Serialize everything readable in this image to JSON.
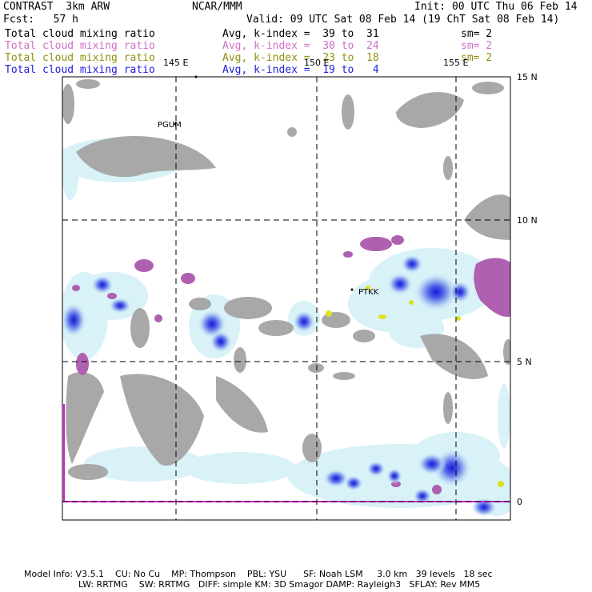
{
  "header": {
    "model": "CONTRAST  3km ARW",
    "org": "NCAR/MMM",
    "init": "Init: 00 UTC Thu 06 Feb 14",
    "fcst": "Fcst:   57 h",
    "valid": "Valid: 09 UTC Sat 08 Feb 14 (19 ChT Sat 08 Feb 14)"
  },
  "fields": [
    {
      "name": "Total cloud mixing ratio",
      "avg": "Avg, k-index =  39 to  31",
      "sm": "sm= 2",
      "color": "#000000"
    },
    {
      "name": "Total cloud mixing ratio",
      "avg": "Avg, k-index =  30 to  24",
      "sm": "sm= 2",
      "color": "#d070c8"
    },
    {
      "name": "Total cloud mixing ratio",
      "avg": "Avg, k-index =  23 to  18",
      "sm": "sm= 2",
      "color": "#909010"
    },
    {
      "name": "Total cloud mixing ratio",
      "avg": "Avg, k-index =  19 to   4",
      "sm": "",
      "color": "#2020e0"
    }
  ],
  "map": {
    "lon_labels": [
      "145 E",
      "150 E",
      "155 E"
    ],
    "lat_labels": [
      "15 N",
      "10 N",
      "5 N",
      "0"
    ],
    "stations": [
      "PGUM",
      "PTKK"
    ]
  },
  "footer": {
    "line1": "Model Info: V3.5.1    CU: No Cu    MP: Thompson    PBL: YSU      SF: Noah LSM     3.0 km   39 levels   18 sec",
    "line2": "LW: RRTMG    SW: RRTMG   DIFF: simple KM: 3D Smagor DAMP: Rayleigh3   SFLAY: Rev MM5"
  }
}
